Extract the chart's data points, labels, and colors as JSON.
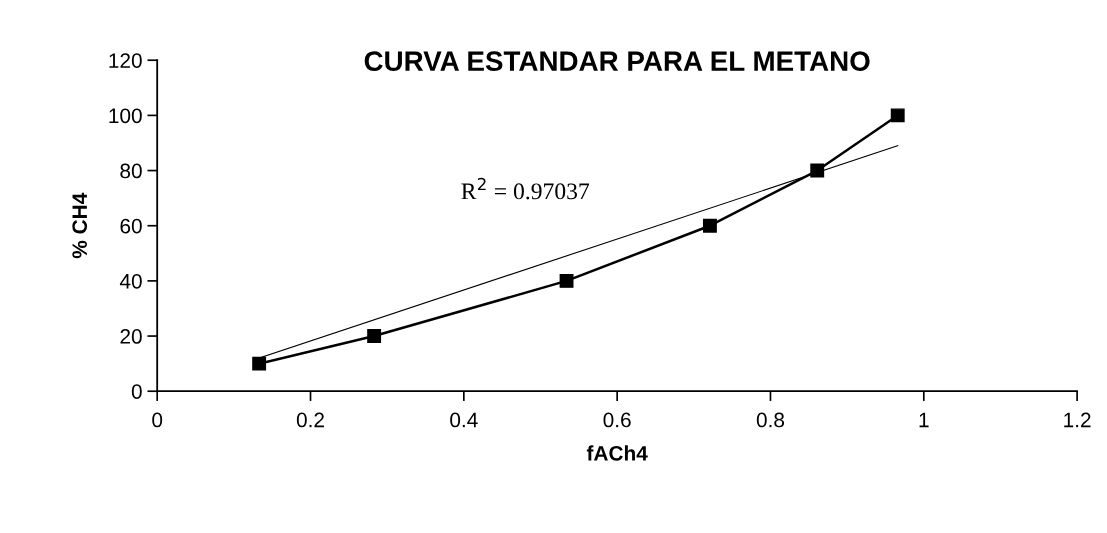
{
  "chart_data": {
    "type": "line",
    "title": "CURVA ESTANDAR PARA EL METANO",
    "xlabel": "fACh4",
    "ylabel": "% CH4",
    "x": [
      0.133,
      0.283,
      0.534,
      0.721,
      0.861,
      0.966
    ],
    "series": [
      {
        "color": "#000000",
        "values": [
          10,
          20,
          40,
          60,
          80,
          100
        ],
        "marker": "square"
      },
      {
        "type": "line",
        "color": "#000000",
        "x": [
          0.133,
          0.966
        ],
        "values": [
          12,
          89
        ],
        "marker": "none"
      }
    ],
    "annotations": [
      "R$^{2}$ = 0.97037"
    ],
    "xlim": [
      0,
      1.2
    ],
    "xticks": [
      0,
      0.2,
      0.4,
      0.6,
      0.8,
      1,
      1.2
    ],
    "ylim": [
      0,
      120
    ],
    "yticks": [
      0,
      20,
      40,
      60,
      80,
      100,
      120
    ],
    "grid": false,
    "legend": false,
    "line_style": "solid"
  }
}
